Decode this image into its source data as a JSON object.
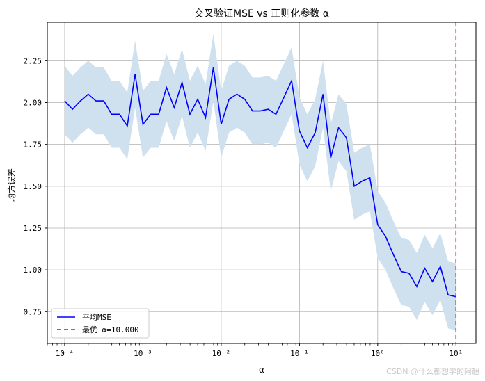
{
  "chart_data": {
    "type": "line",
    "title": "交叉验证MSE vs 正则化参数 α",
    "xlabel": "α",
    "ylabel": "均方误差",
    "xscale": "log",
    "xlim": [
      6e-05,
      18
    ],
    "ylim": [
      0.56,
      2.48
    ],
    "x_ticks": [
      {
        "value": 0.0001,
        "label": "10⁻⁴"
      },
      {
        "value": 0.001,
        "label": "10⁻³"
      },
      {
        "value": 0.01,
        "label": "10⁻²"
      },
      {
        "value": 0.1,
        "label": "10⁻¹"
      },
      {
        "value": 1,
        "label": "10⁰"
      },
      {
        "value": 10,
        "label": "10¹"
      }
    ],
    "y_ticks": [
      0.75,
      1.0,
      1.25,
      1.5,
      1.75,
      2.0,
      2.25
    ],
    "y_tick_labels": [
      "0.75",
      "1.00",
      "1.25",
      "1.50",
      "1.75",
      "2.00",
      "2.25"
    ],
    "grid": true,
    "legend_position": "lower-left",
    "series": [
      {
        "name": "平均MSE",
        "color": "#0000ff",
        "band_color": "#cfe0ee",
        "x": [
          0.0001,
          0.000126,
          0.000159,
          0.0002,
          0.000251,
          0.000316,
          0.000398,
          0.000501,
          0.000631,
          0.000794,
          0.001,
          0.00126,
          0.00159,
          0.002,
          0.00251,
          0.00316,
          0.00398,
          0.00501,
          0.00631,
          0.00794,
          0.01,
          0.0126,
          0.0159,
          0.02,
          0.0251,
          0.0316,
          0.0398,
          0.0501,
          0.0631,
          0.0794,
          0.1,
          0.126,
          0.159,
          0.2,
          0.251,
          0.316,
          0.398,
          0.501,
          0.631,
          0.794,
          1.0,
          1.26,
          1.59,
          2.0,
          2.51,
          3.16,
          3.98,
          5.01,
          6.31,
          7.94,
          10.0
        ],
        "y": [
          2.01,
          1.96,
          2.01,
          2.05,
          2.01,
          2.01,
          1.93,
          1.93,
          1.86,
          2.17,
          1.87,
          1.93,
          1.93,
          2.09,
          1.97,
          2.12,
          1.93,
          2.02,
          1.91,
          2.21,
          1.87,
          2.02,
          2.05,
          2.02,
          1.95,
          1.95,
          1.96,
          1.93,
          2.03,
          2.13,
          1.83,
          1.73,
          1.82,
          2.05,
          1.67,
          1.85,
          1.79,
          1.5,
          1.53,
          1.55,
          1.27,
          1.2,
          1.09,
          0.99,
          0.98,
          0.9,
          1.01,
          0.93,
          1.02,
          0.85,
          0.84
        ],
        "band_upper": [
          2.22,
          2.16,
          2.21,
          2.25,
          2.21,
          2.21,
          2.13,
          2.13,
          2.06,
          2.37,
          2.07,
          2.13,
          2.13,
          2.29,
          2.17,
          2.32,
          2.13,
          2.22,
          2.11,
          2.41,
          2.07,
          2.22,
          2.25,
          2.22,
          2.15,
          2.15,
          2.16,
          2.13,
          2.23,
          2.33,
          2.03,
          1.93,
          2.02,
          2.25,
          1.87,
          2.05,
          1.99,
          1.7,
          1.73,
          1.75,
          1.47,
          1.4,
          1.29,
          1.19,
          1.18,
          1.1,
          1.21,
          1.13,
          1.22,
          1.05,
          1.04
        ],
        "band_lower": [
          1.81,
          1.76,
          1.81,
          1.85,
          1.81,
          1.81,
          1.73,
          1.73,
          1.66,
          1.97,
          1.67,
          1.73,
          1.73,
          1.89,
          1.77,
          1.92,
          1.73,
          1.82,
          1.71,
          2.01,
          1.67,
          1.82,
          1.85,
          1.82,
          1.75,
          1.75,
          1.76,
          1.73,
          1.83,
          1.93,
          1.63,
          1.53,
          1.62,
          1.85,
          1.47,
          1.65,
          1.59,
          1.3,
          1.33,
          1.35,
          1.07,
          1.0,
          0.89,
          0.79,
          0.78,
          0.7,
          0.81,
          0.73,
          0.82,
          0.65,
          0.64
        ]
      }
    ],
    "vline": {
      "x": 10,
      "color": "#ff0000",
      "name": "最优 α=10.000"
    }
  },
  "watermark": "CSDN @什么都想学的阿超"
}
